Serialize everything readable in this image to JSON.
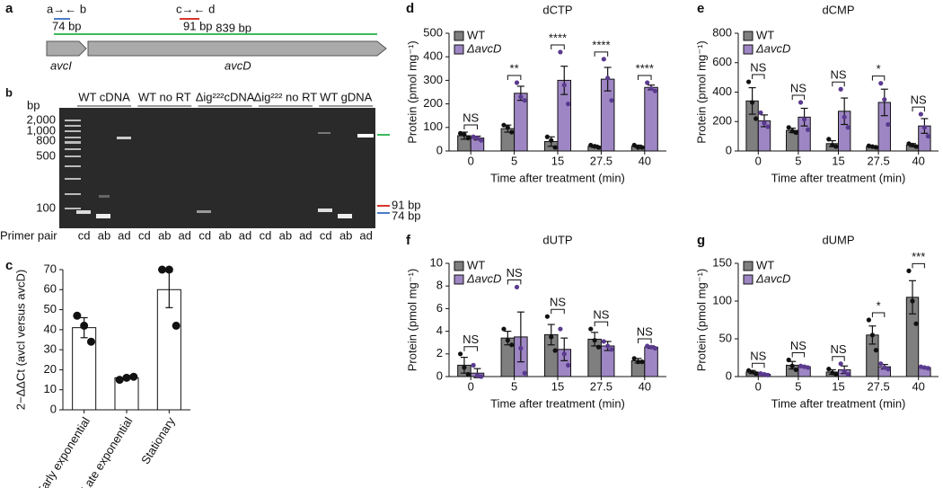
{
  "gene_map": {
    "label": "a",
    "primer_ab": "a→← b",
    "primer_cd": "c→← d",
    "size_ab": "74 bp",
    "size_cd": "91 bp",
    "size_ad": "839 bp",
    "gene1": "avcI",
    "gene2": "avcD"
  },
  "gel": {
    "label": "b",
    "unit": "bp",
    "ladder": [
      "2,000",
      "1,000",
      "800",
      "500",
      "100"
    ],
    "groups": [
      "WT cDNA",
      "WT no RT",
      "Δig²²²cDNA",
      "Δig²²² no RT",
      "WT gDNA"
    ],
    "primer_label": "Primer pair",
    "primers": [
      "cd",
      "ab",
      "ad"
    ],
    "markers": [
      "91 bp",
      "74 bp"
    ]
  },
  "chart_data": [
    {
      "type": "bar",
      "panel_label": "c",
      "y_label": "2−ΔΔCt (avcI versus avcD)",
      "categories": [
        "Early exponential",
        "Late exponential",
        "Stationary"
      ],
      "values": [
        41,
        16,
        60
      ],
      "errors": [
        5,
        0.5,
        9
      ],
      "points": [
        [
          47,
          42,
          34
        ],
        [
          15,
          16,
          16.5
        ],
        [
          70,
          70,
          42
        ]
      ],
      "color": "#ffffff",
      "point_color": "#111111",
      "ylim": [
        0,
        70
      ],
      "yticks": [
        0,
        10,
        20,
        30,
        40,
        50,
        60,
        70
      ]
    },
    {
      "type": "bar",
      "panel_label": "d",
      "title": "dCTP",
      "x_label": "Time after treatment (min)",
      "y_label": "Protein (pmol mg⁻¹)",
      "categories": [
        "0",
        "5",
        "15",
        "27.5",
        "40"
      ],
      "ylim": [
        0,
        500
      ],
      "yticks": [
        0,
        100,
        200,
        300,
        400,
        500
      ],
      "legend": "upper left",
      "series": [
        {
          "name": "WT",
          "color": "#7f7f7f",
          "point_color": "#111111",
          "values": [
            65,
            95,
            40,
            20,
            20
          ],
          "errors": [
            15,
            15,
            20,
            5,
            5
          ],
          "points": [
            [
              75,
              70,
              55
            ],
            [
              110,
              100,
              80
            ],
            [
              60,
              45,
              15
            ],
            [
              25,
              20,
              15
            ],
            [
              25,
              15,
              15
            ]
          ]
        },
        {
          "name": "ΔavcD",
          "color": "#9e86c4",
          "point_color": "#5a3a8e",
          "values": [
            55,
            245,
            300,
            305,
            270
          ],
          "errors": [
            8,
            30,
            60,
            50,
            10
          ],
          "points": [
            [
              60,
              55,
              45
            ],
            [
              290,
              230,
              215
            ],
            [
              420,
              280,
              200
            ],
            [
              390,
              310,
              215
            ],
            [
              290,
              265,
              255
            ]
          ]
        }
      ],
      "significance": [
        "NS",
        "**",
        "****",
        "****",
        "****"
      ]
    },
    {
      "type": "bar",
      "panel_label": "e",
      "title": "dCMP",
      "x_label": "Time after treatment (min)",
      "y_label": "Protein (pmol mg⁻¹)",
      "categories": [
        "0",
        "5",
        "15",
        "27.5",
        "40"
      ],
      "ylim": [
        0,
        800
      ],
      "yticks": [
        0,
        200,
        400,
        600,
        800
      ],
      "legend": "upper left",
      "series": [
        {
          "name": "WT",
          "color": "#7f7f7f",
          "point_color": "#111111",
          "values": [
            340,
            140,
            50,
            30,
            40
          ],
          "errors": [
            90,
            15,
            20,
            5,
            10
          ],
          "points": [
            [
              470,
              330,
              220
            ],
            [
              160,
              135,
              125
            ],
            [
              80,
              40,
              30
            ],
            [
              35,
              30,
              25
            ],
            [
              50,
              40,
              30
            ]
          ]
        },
        {
          "name": "ΔavcD",
          "color": "#9e86c4",
          "point_color": "#5a3a8e",
          "values": [
            205,
            230,
            270,
            330,
            170
          ],
          "errors": [
            40,
            60,
            90,
            90,
            50
          ],
          "points": [
            [
              260,
              190,
              165
            ],
            [
              330,
              215,
              145
            ],
            [
              420,
              230,
              160
            ],
            [
              460,
              350,
              180
            ],
            [
              250,
              160,
              100
            ]
          ]
        }
      ],
      "significance": [
        "NS",
        "NS",
        "NS",
        "*",
        "NS"
      ]
    },
    {
      "type": "bar",
      "panel_label": "f",
      "title": "dUTP",
      "x_label": "Time after treatment (min)",
      "y_label": "Protein (pmol mg⁻¹)",
      "categories": [
        "0",
        "5",
        "15",
        "27.5",
        "40"
      ],
      "ylim": [
        0,
        10
      ],
      "yticks": [
        0,
        2,
        4,
        6,
        8,
        10
      ],
      "legend": "upper left",
      "series": [
        {
          "name": "WT",
          "color": "#7f7f7f",
          "point_color": "#111111",
          "values": [
            1,
            3.4,
            3.7,
            3.3,
            1.4
          ],
          "errors": [
            0.7,
            0.6,
            0.9,
            0.6,
            0.2
          ],
          "points": [
            [
              2,
              0.8,
              0.2
            ],
            [
              4.2,
              3.2,
              2.8
            ],
            [
              5.3,
              3.5,
              2.3
            ],
            [
              4.2,
              3.2,
              2.6
            ],
            [
              1.6,
              1.3,
              1.3
            ]
          ]
        },
        {
          "name": "ΔavcD",
          "color": "#9e86c4",
          "point_color": "#5a3a8e",
          "values": [
            0.3,
            3.5,
            2.4,
            2.7,
            2.6
          ],
          "errors": [
            0.4,
            2.2,
            1,
            0.4,
            0.1
          ],
          "points": [
            [
              1,
              0.1,
              0
            ],
            [
              7.9,
              2.5,
              0.3
            ],
            [
              4.2,
              2,
              1
            ],
            [
              3.1,
              2.7,
              2.4
            ],
            [
              2.7,
              2.6,
              2.5
            ]
          ]
        }
      ],
      "significance": [
        "NS",
        "NS",
        "NS",
        "NS",
        "NS"
      ]
    },
    {
      "type": "bar",
      "panel_label": "g",
      "title": "dUMP",
      "x_label": "Time after treatment (min)",
      "y_label": "Protein (pmol mg⁻¹)",
      "categories": [
        "0",
        "5",
        "15",
        "27.5",
        "40"
      ],
      "ylim": [
        0,
        150
      ],
      "yticks": [
        0,
        50,
        100,
        150
      ],
      "legend": "upper left",
      "series": [
        {
          "name": "WT",
          "color": "#7f7f7f",
          "point_color": "#111111",
          "values": [
            6,
            15,
            6,
            55,
            105
          ],
          "errors": [
            2,
            5,
            3,
            12,
            22
          ],
          "points": [
            [
              8,
              6,
              4
            ],
            [
              22,
              14,
              9
            ],
            [
              10,
              5,
              3
            ],
            [
              75,
              55,
              35
            ],
            [
              140,
              100,
              70
            ]
          ]
        },
        {
          "name": "ΔavcD",
          "color": "#9e86c4",
          "point_color": "#5a3a8e",
          "values": [
            3,
            13,
            9,
            13,
            12
          ],
          "errors": [
            1,
            1,
            5,
            3,
            1
          ],
          "points": [
            [
              4,
              3,
              2
            ],
            [
              14,
              13,
              12
            ],
            [
              17,
              7,
              3
            ],
            [
              17,
              12,
              10
            ],
            [
              13,
              12,
              11
            ]
          ]
        }
      ],
      "significance": [
        "NS",
        "NS",
        "NS",
        "*",
        "***"
      ]
    }
  ]
}
